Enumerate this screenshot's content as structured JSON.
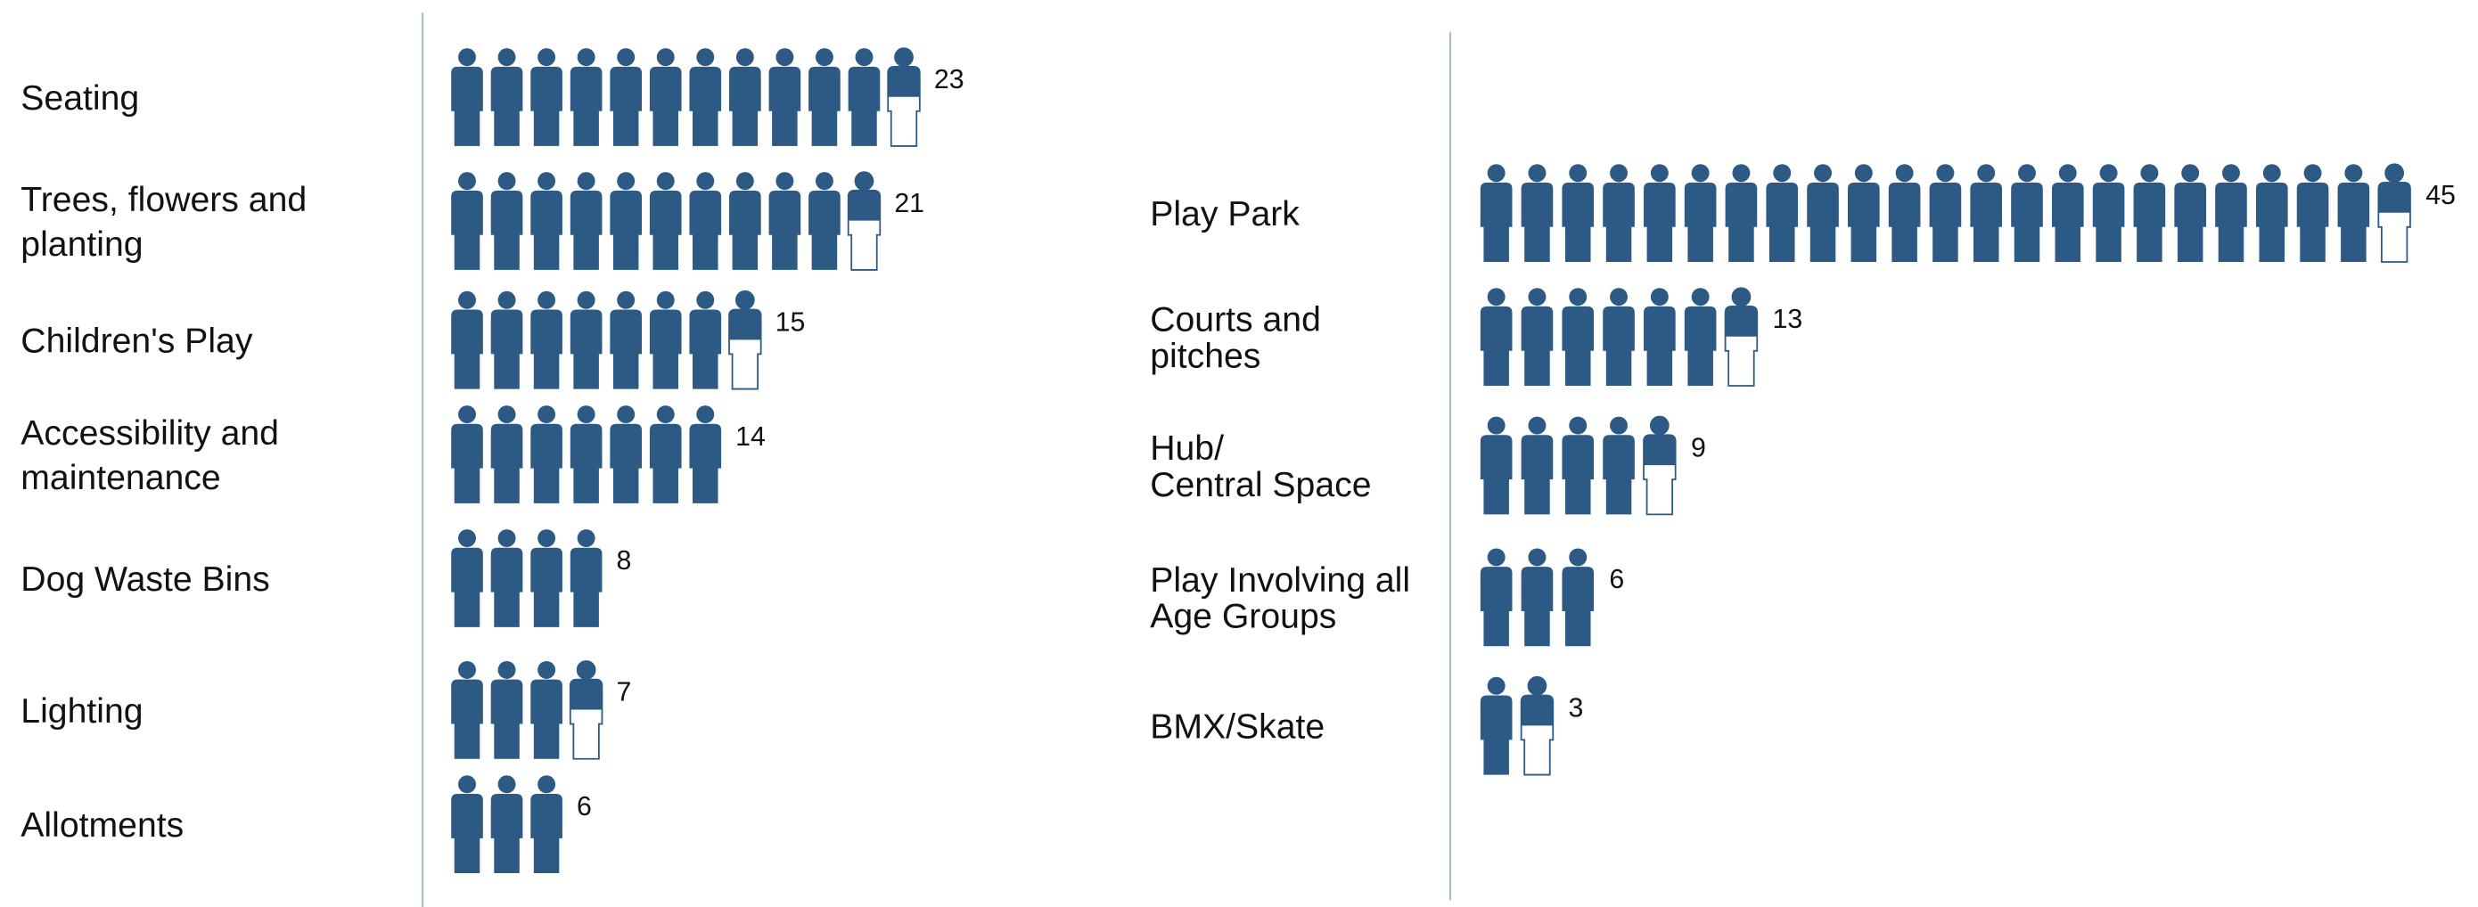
{
  "chart_data": [
    {
      "type": "pictogram",
      "color": "#2d5a85",
      "categories": [
        [
          "Seating"
        ],
        [
          "Trees, flowers and",
          "planting"
        ],
        [
          "Children's Play"
        ],
        [
          "Accessibility and",
          "maintenance"
        ],
        [
          "Dog Waste Bins"
        ],
        [
          "Lighting"
        ],
        [
          "Allotments"
        ]
      ],
      "values": [
        23,
        21,
        15,
        14,
        8,
        7,
        6
      ]
    },
    {
      "type": "pictogram",
      "color": "#2d5a85",
      "categories": [
        [
          "Play Park"
        ],
        [
          "Courts and",
          "pitches"
        ],
        [
          "Hub/",
          "Central Space"
        ],
        [
          "Play Involving all",
          "Age Groups"
        ],
        [
          "BMX/Skate"
        ]
      ],
      "values": [
        45,
        13,
        9,
        6,
        3
      ]
    }
  ]
}
